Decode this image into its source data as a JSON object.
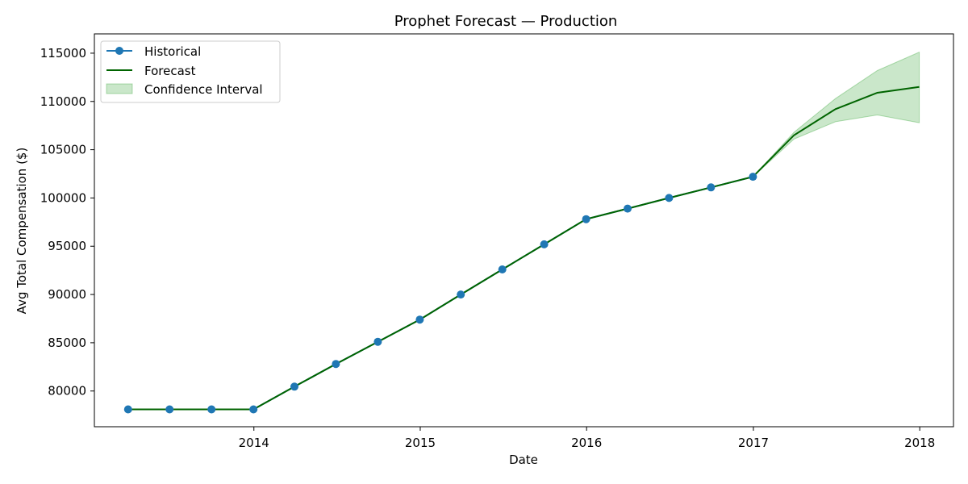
{
  "chart_data": {
    "type": "line",
    "title": "Prophet Forecast — Production",
    "xlabel": "Date",
    "ylabel": "Avg Total Compensation ($)",
    "x_ticks": [
      "2014",
      "2015",
      "2016",
      "2017",
      "2018"
    ],
    "y_ticks": [
      "80000",
      "85000",
      "90000",
      "95000",
      "100000",
      "105000",
      "110000",
      "115000"
    ],
    "xlim": [
      "2013-01-16",
      "2018-03-16"
    ],
    "ylim": [
      76300,
      117000
    ],
    "grid": false,
    "legend_position": "top-left",
    "legend": [
      "Historical",
      "Forecast",
      "Confidence Interval"
    ],
    "series": [
      {
        "name": "Historical",
        "color": "#1f77b4",
        "marker": "circle",
        "points": [
          {
            "x": "2013-03-31",
            "y": 78100
          },
          {
            "x": "2013-06-30",
            "y": 78100
          },
          {
            "x": "2013-09-30",
            "y": 78100
          },
          {
            "x": "2013-12-31",
            "y": 78100
          },
          {
            "x": "2014-03-31",
            "y": 80450
          },
          {
            "x": "2014-06-30",
            "y": 82800
          },
          {
            "x": "2014-09-30",
            "y": 85100
          },
          {
            "x": "2014-12-31",
            "y": 87400
          },
          {
            "x": "2015-03-31",
            "y": 90000
          },
          {
            "x": "2015-06-30",
            "y": 92600
          },
          {
            "x": "2015-09-30",
            "y": 95200
          },
          {
            "x": "2015-12-31",
            "y": 97800
          },
          {
            "x": "2016-03-31",
            "y": 98900
          },
          {
            "x": "2016-06-30",
            "y": 100000
          },
          {
            "x": "2016-09-30",
            "y": 101100
          },
          {
            "x": "2016-12-31",
            "y": 102200
          }
        ]
      },
      {
        "name": "Forecast",
        "color": "#006400",
        "points": [
          {
            "x": "2013-03-31",
            "y": 78100
          },
          {
            "x": "2013-06-30",
            "y": 78100
          },
          {
            "x": "2013-09-30",
            "y": 78100
          },
          {
            "x": "2013-12-31",
            "y": 78100
          },
          {
            "x": "2014-03-31",
            "y": 80450
          },
          {
            "x": "2014-06-30",
            "y": 82800
          },
          {
            "x": "2014-09-30",
            "y": 85100
          },
          {
            "x": "2014-12-31",
            "y": 87400
          },
          {
            "x": "2015-03-31",
            "y": 90000
          },
          {
            "x": "2015-06-30",
            "y": 92600
          },
          {
            "x": "2015-09-30",
            "y": 95200
          },
          {
            "x": "2015-12-31",
            "y": 97800
          },
          {
            "x": "2016-03-31",
            "y": 98900
          },
          {
            "x": "2016-06-30",
            "y": 100000
          },
          {
            "x": "2016-09-30",
            "y": 101100
          },
          {
            "x": "2016-12-31",
            "y": 102200
          },
          {
            "x": "2017-03-31",
            "y": 106500
          },
          {
            "x": "2017-06-30",
            "y": 109200
          },
          {
            "x": "2017-09-30",
            "y": 110900
          },
          {
            "x": "2017-12-31",
            "y": 111500
          }
        ]
      },
      {
        "name": "Confidence Interval",
        "color": "#2ca02c",
        "fill_opacity": 0.25,
        "points": [
          {
            "x": "2016-12-31",
            "lower": 102200,
            "upper": 102200
          },
          {
            "x": "2017-03-31",
            "lower": 106100,
            "upper": 106800
          },
          {
            "x": "2017-06-30",
            "lower": 107900,
            "upper": 110300
          },
          {
            "x": "2017-09-30",
            "lower": 108600,
            "upper": 113200
          },
          {
            "x": "2017-12-31",
            "lower": 107800,
            "upper": 115100
          }
        ]
      }
    ]
  }
}
